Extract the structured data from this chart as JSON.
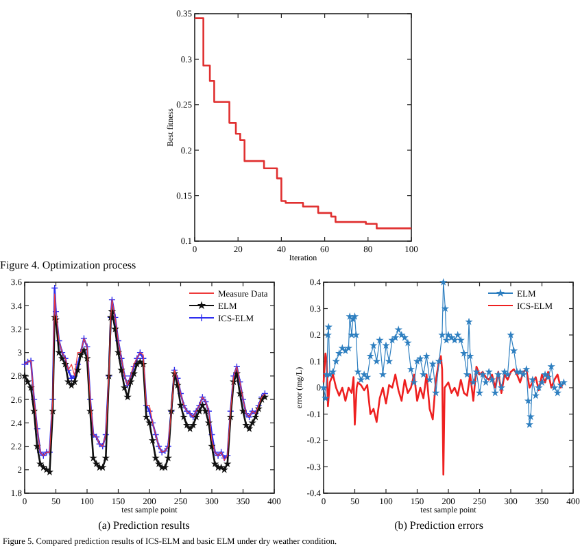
{
  "chart_data": [
    {
      "type": "step",
      "xlabel": "Iteration",
      "ylabel": "Best fitness",
      "annotations": [
        "Figure 4. Optimization process"
      ],
      "xlim": [
        0,
        100
      ],
      "xticks": [
        0,
        20,
        40,
        60,
        80,
        100
      ],
      "ylim": [
        0.1,
        0.35
      ],
      "yticks": [
        0.1,
        0.15,
        0.2,
        0.25,
        0.3,
        0.35
      ],
      "x": [
        0,
        4,
        7,
        9,
        16,
        19,
        21,
        23,
        32,
        38,
        40,
        42,
        50,
        57,
        63,
        65,
        79,
        84,
        100
      ],
      "series": [
        {
          "color": "#e03030",
          "values": [
            0.345,
            0.293,
            0.276,
            0.253,
            0.23,
            0.218,
            0.211,
            0.188,
            0.18,
            0.169,
            0.144,
            0.142,
            0.138,
            0.131,
            0.127,
            0.121,
            0.119,
            0.114,
            0.114
          ]
        }
      ]
    },
    {
      "type": "line",
      "xlabel": "test sample point",
      "annotations": [
        "(a) Prediction results",
        "Figure 5. Compared prediction results of ICS-ELM and basic ELM under dry weather condition."
      ],
      "xlim": [
        0,
        400
      ],
      "xticks": [
        0,
        50,
        100,
        150,
        200,
        250,
        300,
        350,
        400
      ],
      "ylim": [
        1.8,
        3.6
      ],
      "yticks": [
        1.8,
        2,
        2.2,
        2.4,
        2.6,
        2.8,
        3,
        3.2,
        3.4,
        3.6
      ],
      "legend": "top right",
      "x": [
        0,
        5,
        10,
        15,
        20,
        25,
        30,
        35,
        40,
        45,
        48,
        50,
        55,
        60,
        65,
        70,
        75,
        80,
        85,
        90,
        95,
        100,
        105,
        110,
        115,
        120,
        125,
        130,
        135,
        138,
        140,
        145,
        150,
        155,
        160,
        165,
        170,
        175,
        180,
        185,
        190,
        195,
        200,
        205,
        210,
        215,
        220,
        225,
        230,
        235,
        240,
        245,
        250,
        255,
        260,
        265,
        270,
        275,
        280,
        285,
        290,
        295,
        300,
        305,
        310,
        315,
        320,
        325,
        330,
        335,
        340,
        345,
        350,
        355,
        360,
        365,
        370,
        375,
        380,
        385
      ],
      "series": [
        {
          "name": "Measure Data",
          "color": "#ee3b3b",
          "marker": "none",
          "values": [
            2.9,
            2.92,
            2.93,
            2.6,
            2.35,
            2.15,
            2.12,
            2.15,
            2.15,
            2.6,
            3.5,
            3.35,
            3.1,
            3.0,
            2.95,
            2.85,
            2.9,
            2.8,
            3.0,
            3.0,
            3.12,
            3.05,
            2.6,
            2.3,
            2.28,
            2.22,
            2.2,
            2.3,
            2.8,
            3.3,
            3.45,
            3.3,
            3.1,
            2.95,
            2.8,
            2.72,
            2.8,
            2.9,
            2.95,
            3.0,
            2.98,
            2.55,
            2.55,
            2.4,
            2.3,
            2.2,
            2.15,
            2.16,
            2.2,
            2.5,
            2.85,
            2.78,
            2.65,
            2.55,
            2.5,
            2.48,
            2.45,
            2.5,
            2.55,
            2.62,
            2.58,
            2.5,
            2.25,
            2.15,
            2.12,
            2.15,
            2.08,
            2.12,
            2.5,
            2.8,
            2.88,
            2.75,
            2.6,
            2.48,
            2.45,
            2.5,
            2.48,
            2.55,
            2.62,
            2.65
          ]
        },
        {
          "name": "ELM",
          "color": "#111111",
          "marker": "star",
          "values": [
            2.8,
            2.75,
            2.7,
            2.5,
            2.2,
            2.05,
            2.02,
            2.0,
            1.98,
            2.5,
            3.3,
            3.28,
            3.0,
            2.95,
            2.9,
            2.75,
            2.72,
            2.75,
            2.85,
            2.98,
            3.02,
            2.95,
            2.5,
            2.1,
            2.05,
            2.02,
            2.02,
            2.1,
            2.8,
            3.3,
            3.35,
            3.2,
            3.0,
            2.85,
            2.7,
            2.62,
            2.75,
            2.82,
            2.9,
            2.92,
            2.9,
            2.45,
            2.4,
            2.25,
            2.1,
            2.05,
            2.02,
            2.02,
            2.1,
            2.5,
            2.82,
            2.72,
            2.55,
            2.45,
            2.38,
            2.35,
            2.38,
            2.45,
            2.5,
            2.55,
            2.5,
            2.4,
            2.2,
            2.05,
            2.02,
            2.02,
            2.0,
            2.05,
            2.45,
            2.75,
            2.82,
            2.65,
            2.5,
            2.38,
            2.35,
            2.4,
            2.45,
            2.52,
            2.6,
            2.62
          ]
        },
        {
          "name": "ICS-ELM",
          "color": "#2f2ff0",
          "marker": "cross",
          "values": [
            2.9,
            2.92,
            2.93,
            2.6,
            2.35,
            2.15,
            2.12,
            2.15,
            2.15,
            2.6,
            3.55,
            3.35,
            3.1,
            3.0,
            2.95,
            2.85,
            2.78,
            2.8,
            2.9,
            3.0,
            3.12,
            3.05,
            2.6,
            2.3,
            2.28,
            2.22,
            2.2,
            2.3,
            2.8,
            3.3,
            3.45,
            3.3,
            3.1,
            2.95,
            2.8,
            2.72,
            2.8,
            2.88,
            2.95,
            3.0,
            2.95,
            2.55,
            2.5,
            2.4,
            2.3,
            2.2,
            2.15,
            2.16,
            2.2,
            2.5,
            2.85,
            2.78,
            2.65,
            2.55,
            2.5,
            2.48,
            2.45,
            2.5,
            2.55,
            2.62,
            2.58,
            2.5,
            2.3,
            2.15,
            2.12,
            2.15,
            2.1,
            2.12,
            2.5,
            2.8,
            2.88,
            2.75,
            2.6,
            2.48,
            2.45,
            2.5,
            2.48,
            2.55,
            2.62,
            2.65
          ]
        }
      ]
    },
    {
      "type": "line",
      "xlabel": "test sample point",
      "ylabel": "error (mg/L)",
      "annotations": [
        "(b) Prediction errors"
      ],
      "xlim": [
        0,
        400
      ],
      "xticks": [
        0,
        50,
        100,
        150,
        200,
        250,
        300,
        350,
        400
      ],
      "ylim": [
        -0.4,
        0.4
      ],
      "yticks": [
        -0.4,
        -0.3,
        -0.2,
        -0.1,
        0,
        0.1,
        0.2,
        0.3,
        0.4
      ],
      "legend": "top right",
      "series": [
        {
          "name": "ELM",
          "color": "#2e7fc0",
          "marker": "star",
          "x": [
            0,
            3,
            5,
            7,
            8,
            10,
            15,
            20,
            25,
            30,
            35,
            40,
            42,
            45,
            47,
            50,
            52,
            55,
            60,
            65,
            70,
            75,
            80,
            85,
            90,
            95,
            100,
            105,
            110,
            115,
            120,
            125,
            130,
            135,
            140,
            145,
            150,
            155,
            160,
            165,
            170,
            175,
            180,
            185,
            190,
            192,
            195,
            197,
            200,
            205,
            210,
            215,
            220,
            225,
            230,
            233,
            235,
            240,
            245,
            250,
            255,
            260,
            265,
            270,
            275,
            280,
            285,
            290,
            295,
            300,
            305,
            310,
            315,
            320,
            325,
            328,
            330,
            332,
            335,
            340,
            345,
            350,
            355,
            360,
            365,
            370,
            375,
            380,
            385
          ],
          "values": [
            0.0,
            -0.04,
            0.05,
            0.2,
            0.23,
            0.05,
            0.06,
            0.1,
            0.13,
            0.15,
            0.14,
            0.15,
            0.27,
            0.2,
            0.26,
            0.27,
            0.2,
            0.06,
            0.03,
            0.05,
            0.04,
            0.12,
            0.16,
            0.1,
            0.18,
            0.05,
            0.16,
            0.1,
            0.18,
            0.19,
            0.22,
            0.2,
            0.19,
            0.17,
            0.07,
            0.02,
            0.1,
            0.11,
            0.05,
            0.12,
            0.03,
            0.09,
            -0.02,
            0.1,
            0.2,
            0.4,
            0.3,
            0.18,
            0.2,
            0.19,
            0.18,
            0.2,
            0.18,
            0.13,
            0.05,
            0.25,
            0.12,
            0.02,
            0.06,
            -0.02,
            0.05,
            0.02,
            0.06,
            0.03,
            -0.02,
            0.05,
            0.0,
            0.06,
            0.05,
            0.2,
            0.14,
            0.06,
            0.06,
            0.05,
            0.07,
            -0.05,
            -0.14,
            -0.11,
            0.03,
            -0.03,
            0.0,
            0.02,
            0.05,
            0.04,
            0.08,
            0.0,
            -0.02,
            0.01,
            0.02
          ]
        },
        {
          "name": "ICS-ELM",
          "color": "#ee2020",
          "marker": "none",
          "x": [
            0,
            3,
            5,
            7,
            10,
            15,
            20,
            25,
            30,
            35,
            40,
            45,
            48,
            50,
            53,
            55,
            60,
            65,
            70,
            75,
            80,
            85,
            90,
            95,
            100,
            105,
            110,
            115,
            120,
            125,
            130,
            135,
            140,
            145,
            150,
            155,
            160,
            165,
            170,
            175,
            180,
            185,
            188,
            190,
            192,
            194,
            200,
            205,
            210,
            215,
            220,
            225,
            230,
            235,
            240,
            245,
            250,
            255,
            260,
            265,
            270,
            275,
            280,
            285,
            290,
            295,
            300,
            305,
            310,
            315,
            320,
            325,
            330,
            335,
            340,
            345,
            350,
            355,
            360,
            365,
            370,
            375,
            380,
            385
          ],
          "values": [
            0.02,
            0.13,
            0.1,
            -0.07,
            0.02,
            0.05,
            0.0,
            -0.03,
            0.0,
            -0.05,
            0.0,
            -0.02,
            0.04,
            -0.14,
            0.0,
            0.02,
            0.01,
            -0.01,
            0.01,
            -0.1,
            -0.08,
            -0.13,
            -0.04,
            0.0,
            -0.06,
            0.01,
            0.0,
            0.05,
            -0.01,
            -0.05,
            0.03,
            -0.02,
            0.0,
            0.05,
            -0.05,
            0.0,
            -0.04,
            0.05,
            -0.08,
            -0.12,
            0.03,
            0.1,
            0.12,
            0.07,
            -0.33,
            0.0,
            0.02,
            -0.02,
            0.0,
            -0.03,
            0.03,
            -0.02,
            -0.03,
            0.05,
            -0.05,
            0.08,
            0.05,
            0.06,
            0.04,
            0.03,
            0.05,
            0.0,
            0.06,
            -0.02,
            0.05,
            0.03,
            0.06,
            0.07,
            0.05,
            0.02,
            0.06,
            0.07,
            0.0,
            0.02,
            0.04,
            -0.01,
            0.05,
            0.02,
            0.06,
            0.0,
            0.03,
            0.05,
            0.0,
            0.02
          ]
        }
      ]
    }
  ]
}
